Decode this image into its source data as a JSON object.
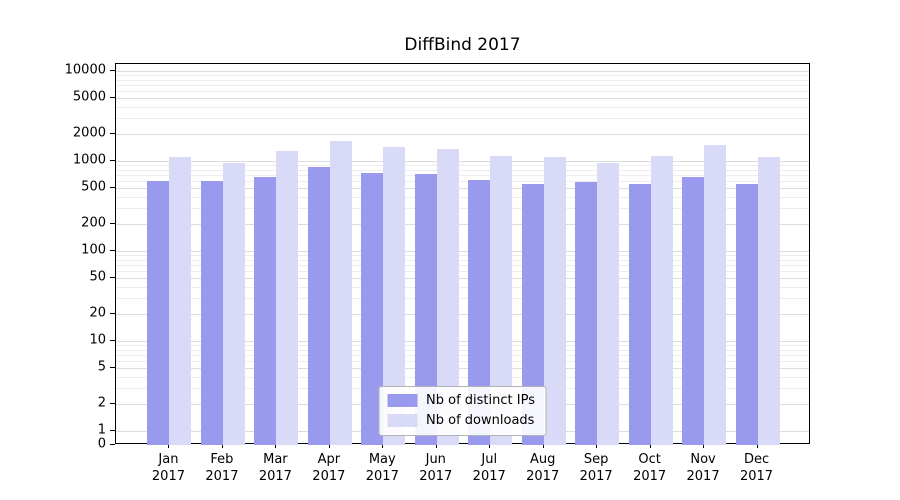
{
  "chart_data": {
    "type": "bar",
    "title": "DiffBind 2017",
    "year_label": "2017",
    "categories": [
      "Jan",
      "Feb",
      "Mar",
      "Apr",
      "May",
      "Jun",
      "Jul",
      "Aug",
      "Sep",
      "Oct",
      "Nov",
      "Dec"
    ],
    "series": [
      {
        "name": "Nb of distinct IPs",
        "color": "#9999ee",
        "values": [
          600,
          600,
          660,
          850,
          730,
          710,
          620,
          550,
          590,
          550,
          660,
          550
        ]
      },
      {
        "name": "Nb of downloads",
        "color": "#d9d9f8",
        "values": [
          1100,
          950,
          1300,
          1650,
          1450,
          1350,
          1150,
          1100,
          950,
          1150,
          1500,
          1100
        ]
      }
    ],
    "yscale": "log",
    "yticks": [
      10000,
      5000,
      2000,
      1000,
      500,
      200,
      100,
      50,
      20,
      10,
      5,
      2,
      1,
      0
    ],
    "ylim": [
      0,
      13000
    ],
    "xlabel": "",
    "ylabel": "",
    "grid": "horizontal-log",
    "legend_position": "inside-bottom-center"
  },
  "colors": {
    "background": "#ffffff",
    "axis": "#000000",
    "grid_major": "#dcdcdc",
    "grid_minor": "#ededed",
    "legend_border": "#b3b3b3"
  }
}
